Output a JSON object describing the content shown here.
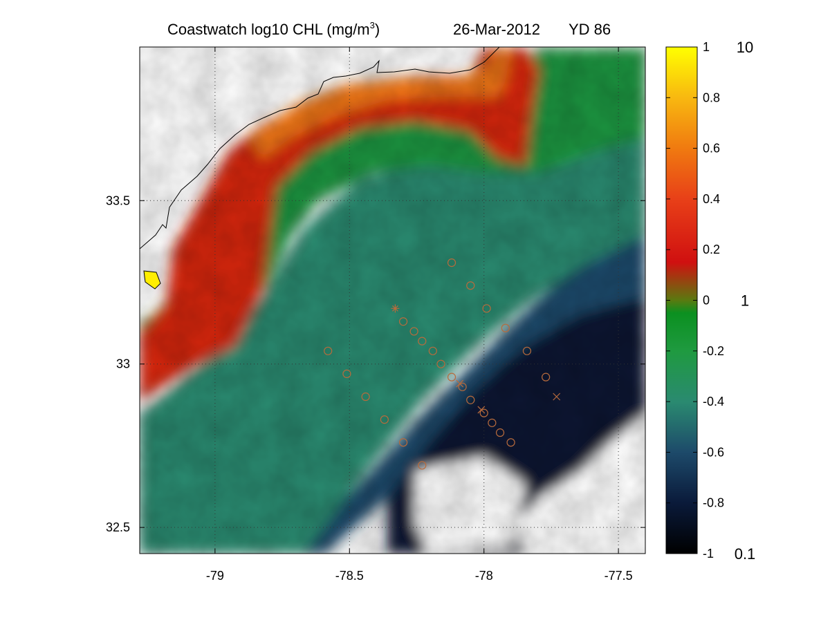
{
  "title": {
    "main": "Coastwatch  log10  CHL (mg/m",
    "superscript": "3",
    "close": ")",
    "date": "26-Mar-2012",
    "yearday": "YD 86"
  },
  "map": {
    "lon_range": [
      -79.28,
      -77.4
    ],
    "lat_range": [
      32.42,
      33.97
    ],
    "lon_ticks": [
      {
        "value": -79,
        "label": "-79"
      },
      {
        "value": -78.5,
        "label": "-78.5"
      },
      {
        "value": -78,
        "label": "-78"
      },
      {
        "value": -77.5,
        "label": "-77.5"
      }
    ],
    "lat_ticks": [
      {
        "value": 33.5,
        "label": "33.5"
      },
      {
        "value": 33,
        "label": "33"
      },
      {
        "value": 32.5,
        "label": "32.5"
      }
    ],
    "grid": "dotted",
    "stations": [
      {
        "lon": -78.12,
        "lat": 33.31,
        "marker": "o"
      },
      {
        "lon": -78.05,
        "lat": 33.24,
        "marker": "o"
      },
      {
        "lon": -77.99,
        "lat": 33.17,
        "marker": "o"
      },
      {
        "lon": -78.33,
        "lat": 33.17,
        "marker": "*"
      },
      {
        "lon": -78.3,
        "lat": 33.13,
        "marker": "o"
      },
      {
        "lon": -78.26,
        "lat": 33.1,
        "marker": "o"
      },
      {
        "lon": -77.92,
        "lat": 33.11,
        "marker": "o"
      },
      {
        "lon": -78.23,
        "lat": 33.07,
        "marker": "o"
      },
      {
        "lon": -78.19,
        "lat": 33.04,
        "marker": "o"
      },
      {
        "lon": -78.58,
        "lat": 33.04,
        "marker": "o"
      },
      {
        "lon": -77.84,
        "lat": 33.04,
        "marker": "o"
      },
      {
        "lon": -78.16,
        "lat": 33.0,
        "marker": "o"
      },
      {
        "lon": -78.51,
        "lat": 32.97,
        "marker": "o"
      },
      {
        "lon": -78.12,
        "lat": 32.96,
        "marker": "o"
      },
      {
        "lon": -77.77,
        "lat": 32.96,
        "marker": "o"
      },
      {
        "lon": -78.09,
        "lat": 32.94,
        "marker": "x"
      },
      {
        "lon": -78.08,
        "lat": 32.93,
        "marker": "o"
      },
      {
        "lon": -78.44,
        "lat": 32.9,
        "marker": "o"
      },
      {
        "lon": -78.05,
        "lat": 32.89,
        "marker": "o"
      },
      {
        "lon": -77.73,
        "lat": 32.9,
        "marker": "x"
      },
      {
        "lon": -78.01,
        "lat": 32.86,
        "marker": "x"
      },
      {
        "lon": -78.0,
        "lat": 32.85,
        "marker": "o"
      },
      {
        "lon": -78.37,
        "lat": 32.83,
        "marker": "o"
      },
      {
        "lon": -77.97,
        "lat": 32.82,
        "marker": "o"
      },
      {
        "lon": -77.94,
        "lat": 32.79,
        "marker": "o"
      },
      {
        "lon": -78.3,
        "lat": 32.76,
        "marker": "o"
      },
      {
        "lon": -77.9,
        "lat": 32.76,
        "marker": "o"
      },
      {
        "lon": -78.23,
        "lat": 32.69,
        "marker": "o"
      }
    ],
    "station_color": "#b86b3c"
  },
  "colorbar": {
    "range": [
      -1,
      1
    ],
    "ticks": [
      {
        "value": 1,
        "label": "1"
      },
      {
        "value": 0.8,
        "label": "0.8"
      },
      {
        "value": 0.6,
        "label": "0.6"
      },
      {
        "value": 0.4,
        "label": "0.4"
      },
      {
        "value": 0.2,
        "label": "0.2"
      },
      {
        "value": 0,
        "label": "0"
      },
      {
        "value": -0.2,
        "label": "-0.2"
      },
      {
        "value": -0.4,
        "label": "-0.4"
      },
      {
        "value": -0.6,
        "label": "-0.6"
      },
      {
        "value": -0.8,
        "label": "-0.8"
      },
      {
        "value": -1,
        "label": "-1"
      }
    ],
    "linear_labels": [
      {
        "value": 1,
        "label": "10"
      },
      {
        "value": 0,
        "label": "1"
      },
      {
        "value": -1,
        "label": "0.1"
      }
    ],
    "linear_label_color": "#b03a00",
    "stops": [
      {
        "value": -1,
        "color": "#000000"
      },
      {
        "value": -0.8,
        "color": "#0a1a3a"
      },
      {
        "value": -0.6,
        "color": "#1d4a6a"
      },
      {
        "value": -0.4,
        "color": "#2a8a70"
      },
      {
        "value": -0.2,
        "color": "#1f9a40"
      },
      {
        "value": -0.05,
        "color": "#0b9020"
      },
      {
        "value": 0,
        "color": "#5a7a10"
      },
      {
        "value": 0.15,
        "color": "#d01010"
      },
      {
        "value": 0.4,
        "color": "#e84018"
      },
      {
        "value": 0.6,
        "color": "#f07a10"
      },
      {
        "value": 0.8,
        "color": "#f8b810"
      },
      {
        "value": 1,
        "color": "#ffff00"
      }
    ]
  }
}
